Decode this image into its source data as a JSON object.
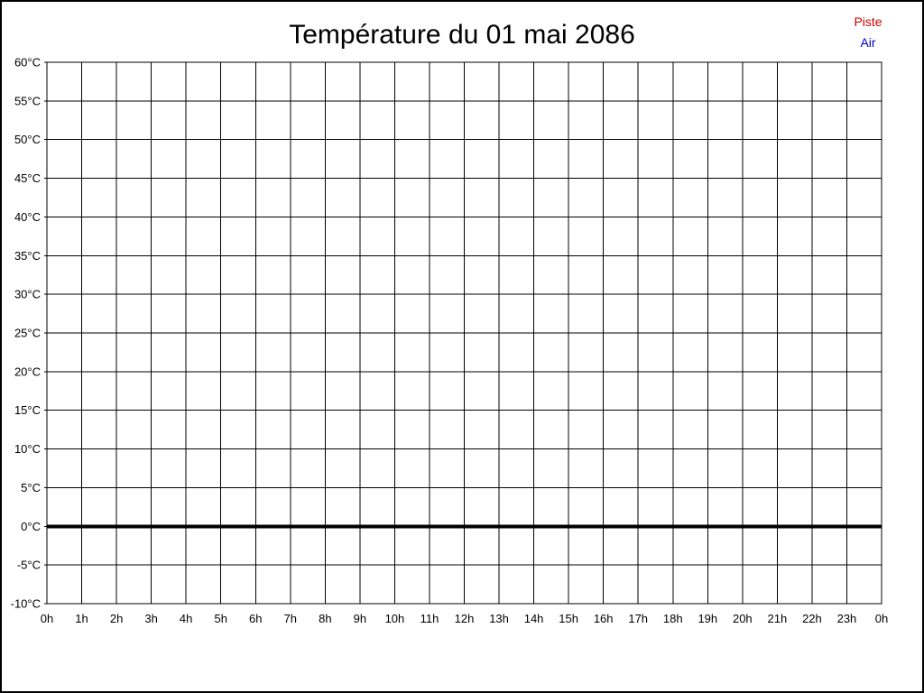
{
  "page": {
    "background": "#ffffff",
    "border_color": "#000000"
  },
  "chart_data": {
    "type": "line",
    "title": "Température du 01 mai 2086",
    "x": [
      "0h",
      "1h",
      "2h",
      "3h",
      "4h",
      "5h",
      "6h",
      "7h",
      "8h",
      "9h",
      "10h",
      "11h",
      "12h",
      "13h",
      "14h",
      "15h",
      "16h",
      "17h",
      "18h",
      "19h",
      "20h",
      "21h",
      "22h",
      "23h",
      "0h"
    ],
    "series": [
      {
        "name": "Piste",
        "color": "#cc0000",
        "values": []
      },
      {
        "name": "Air",
        "color": "#0000cc",
        "values": []
      }
    ],
    "xlabel": "",
    "ylabel": "",
    "ylim": [
      -10,
      60
    ],
    "y_tick_step": 5,
    "y_tick_labels": [
      "60°C",
      "55°C",
      "50°C",
      "45°C",
      "40°C",
      "35°C",
      "30°C",
      "25°C",
      "20°C",
      "15°C",
      "10°C",
      "5°C",
      "0°C",
      "-5°C",
      "-10°C"
    ],
    "grid": true,
    "grid_color": "#000000",
    "zero_line_bold": true,
    "legend_position": "top-right"
  }
}
